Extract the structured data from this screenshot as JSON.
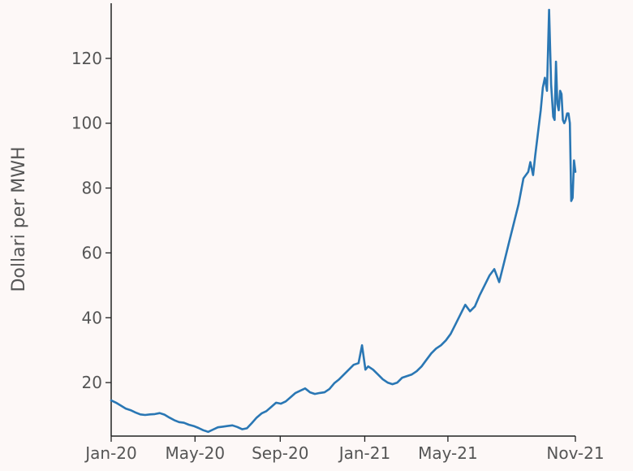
{
  "chart_data": {
    "type": "line",
    "title": "",
    "xlabel": "",
    "ylabel": "Dollari per MWH",
    "x_range": [
      "2020-01-01",
      "2021-11-01"
    ],
    "ylim": [
      3.5,
      137
    ],
    "grid": false,
    "legend": "none",
    "line_color": "#2a77b4",
    "background_color": "#fdf8f7",
    "x_ticks": [
      {
        "date": "2020-01-01",
        "label": "Jan-20"
      },
      {
        "date": "2020-05-01",
        "label": "May-20"
      },
      {
        "date": "2020-09-01",
        "label": "Sep-20"
      },
      {
        "date": "2021-01-01",
        "label": "Jan-21"
      },
      {
        "date": "2021-05-01",
        "label": "May-21"
      },
      {
        "date": "2021-11-01",
        "label": "Nov-21"
      }
    ],
    "y_ticks": [
      20,
      40,
      60,
      80,
      100,
      120
    ],
    "series": [
      {
        "x": [
          "2020-01-01",
          "2020-01-08",
          "2020-01-15",
          "2020-01-22",
          "2020-01-29",
          "2020-02-05",
          "2020-02-12",
          "2020-02-19",
          "2020-02-26",
          "2020-03-04",
          "2020-03-11",
          "2020-03-18",
          "2020-03-25",
          "2020-04-01",
          "2020-04-08",
          "2020-04-15",
          "2020-04-22",
          "2020-04-29",
          "2020-05-06",
          "2020-05-13",
          "2020-05-20",
          "2020-05-27",
          "2020-06-03",
          "2020-06-10",
          "2020-06-17",
          "2020-06-24",
          "2020-07-01",
          "2020-07-08",
          "2020-07-15",
          "2020-07-22",
          "2020-07-29",
          "2020-08-05",
          "2020-08-12",
          "2020-08-19",
          "2020-08-26",
          "2020-09-02",
          "2020-09-09",
          "2020-09-16",
          "2020-09-23",
          "2020-09-30",
          "2020-10-07",
          "2020-10-14",
          "2020-10-21",
          "2020-10-28",
          "2020-11-04",
          "2020-11-11",
          "2020-11-18",
          "2020-11-25",
          "2020-12-02",
          "2020-12-09",
          "2020-12-16",
          "2020-12-23",
          "2020-12-28",
          "2021-01-02",
          "2021-01-06",
          "2021-01-13",
          "2021-01-20",
          "2021-01-27",
          "2021-02-03",
          "2021-02-10",
          "2021-02-17",
          "2021-02-24",
          "2021-03-03",
          "2021-03-10",
          "2021-03-17",
          "2021-03-24",
          "2021-03-31",
          "2021-04-07",
          "2021-04-14",
          "2021-04-21",
          "2021-04-28",
          "2021-05-05",
          "2021-05-12",
          "2021-05-19",
          "2021-05-26",
          "2021-06-02",
          "2021-06-09",
          "2021-06-16",
          "2021-06-23",
          "2021-06-30",
          "2021-07-07",
          "2021-07-14",
          "2021-07-21",
          "2021-07-28",
          "2021-08-04",
          "2021-08-11",
          "2021-08-18",
          "2021-08-25",
          "2021-08-28",
          "2021-09-01",
          "2021-09-04",
          "2021-09-08",
          "2021-09-12",
          "2021-09-15",
          "2021-09-18",
          "2021-09-21",
          "2021-09-24",
          "2021-09-27",
          "2021-09-30",
          "2021-10-02",
          "2021-10-04",
          "2021-10-06",
          "2021-10-08",
          "2021-10-10",
          "2021-10-12",
          "2021-10-14",
          "2021-10-16",
          "2021-10-18",
          "2021-10-20",
          "2021-10-22",
          "2021-10-24",
          "2021-10-26",
          "2021-10-28",
          "2021-10-30",
          "2021-11-01"
        ],
        "y": [
          14.5,
          13.8,
          12.9,
          12.0,
          11.5,
          10.8,
          10.2,
          10.0,
          10.2,
          10.3,
          10.6,
          10.1,
          9.2,
          8.4,
          7.8,
          7.6,
          7.0,
          6.6,
          6.0,
          5.3,
          4.8,
          5.5,
          6.2,
          6.4,
          6.6,
          6.8,
          6.3,
          5.6,
          5.9,
          7.5,
          9.2,
          10.5,
          11.2,
          12.5,
          13.8,
          13.5,
          14.2,
          15.5,
          16.8,
          17.5,
          18.2,
          17.0,
          16.5,
          16.8,
          17.0,
          18.0,
          19.8,
          21.0,
          22.5,
          24.0,
          25.5,
          26.0,
          31.5,
          24.0,
          25.0,
          24.0,
          22.5,
          21.0,
          20.0,
          19.5,
          20.0,
          21.5,
          22.0,
          22.5,
          23.5,
          25.0,
          27.0,
          29.0,
          30.5,
          31.5,
          33.0,
          35.0,
          38.0,
          41.0,
          44.0,
          42.0,
          43.5,
          47.0,
          50.0,
          53.0,
          55.0,
          51.0,
          57.0,
          63.0,
          69.0,
          75.0,
          83.0,
          85.0,
          88.0,
          84.0,
          90.0,
          97.0,
          104.0,
          111.0,
          114.0,
          110.0,
          135.0,
          112.0,
          102.0,
          101.0,
          119.0,
          106.0,
          104.0,
          110.0,
          109.0,
          101.0,
          100.0,
          101.0,
          103.0,
          103.0,
          100.0,
          76.0,
          77.0,
          88.5,
          85.0
        ]
      }
    ]
  }
}
